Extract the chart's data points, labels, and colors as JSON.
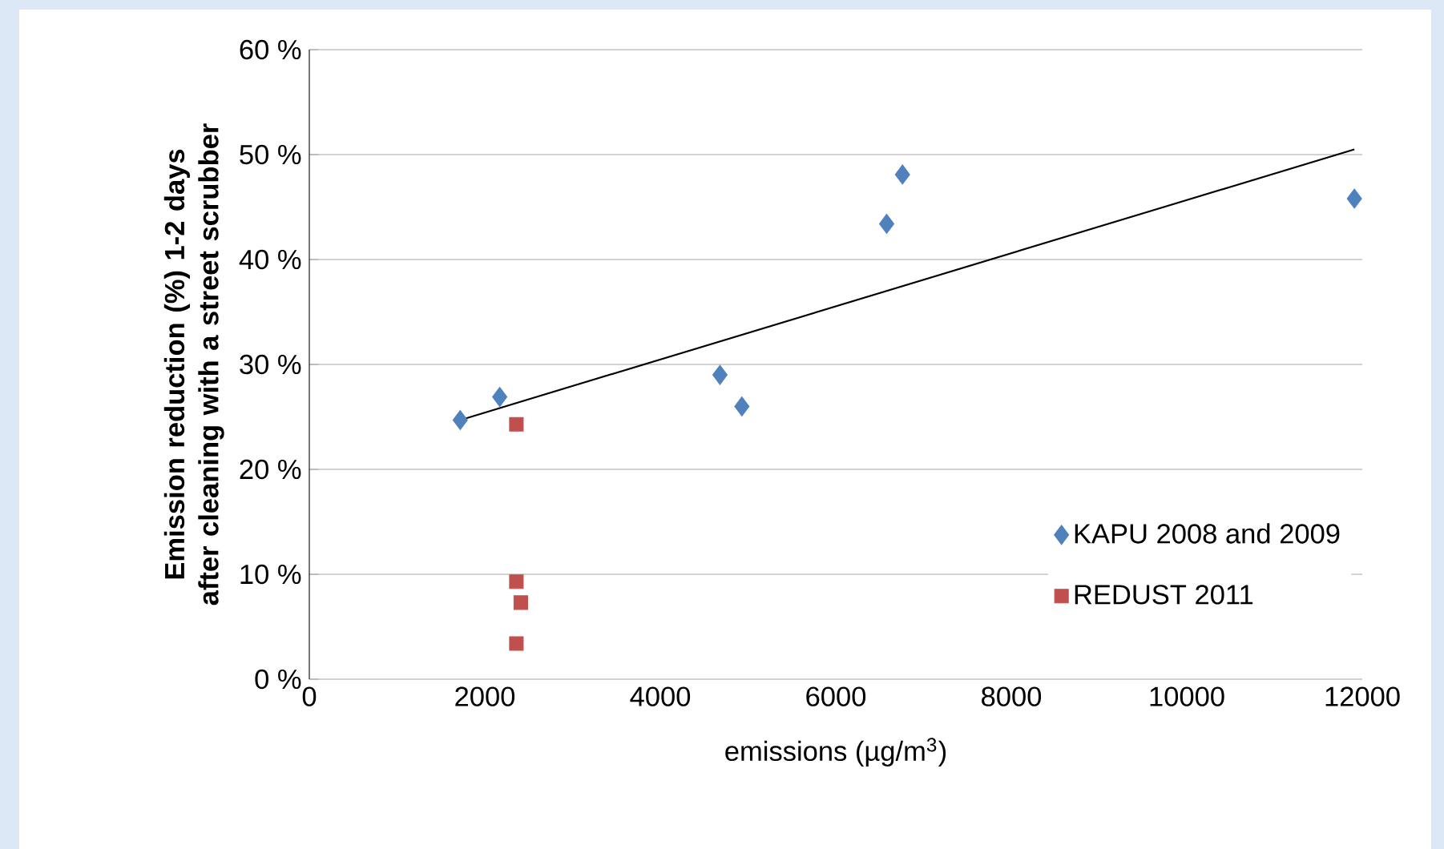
{
  "chart_data": {
    "type": "scatter",
    "xlabel": "emissions (µg/m$^{3}$)",
    "ylabel": "Emission reduction (%) 1-2 days after cleaning with a street scrubber",
    "xlim": [
      0,
      12000
    ],
    "xticks": [
      0,
      2000,
      4000,
      6000,
      8000,
      10000,
      12000
    ],
    "ylim": [
      0,
      60
    ],
    "yticks": [
      {
        "value": 0,
        "label": "0 %"
      },
      {
        "value": 10,
        "label": "10 %"
      },
      {
        "value": 20,
        "label": "20 %"
      },
      {
        "value": 30,
        "label": "30 %"
      },
      {
        "value": 40,
        "label": "40 %"
      },
      {
        "value": 50,
        "label": "50 %"
      },
      {
        "value": 60,
        "label": "60 %"
      }
    ],
    "grid": "y",
    "legend": "bottom right",
    "series": [
      {
        "name": "KAPU 2008 and  2009",
        "color": "#4f81bd",
        "marker": "diamond",
        "x": [
          1720,
          2170,
          4680,
          4930,
          6580,
          6760,
          11910
        ],
        "values": [
          24.7,
          26.9,
          29.0,
          26.0,
          43.4,
          48.1,
          45.8
        ]
      },
      {
        "name": "REDUST 2011",
        "color": "#c0504d",
        "marker": "square",
        "x": [
          2360,
          2360,
          2410,
          2360
        ],
        "values": [
          24.3,
          9.3,
          7.3,
          3.4
        ]
      },
      {
        "type": "line",
        "color": "#000000",
        "marker": "none",
        "x": [
          1720,
          11910
        ],
        "values": [
          24.7,
          50.5
        ]
      }
    ]
  }
}
